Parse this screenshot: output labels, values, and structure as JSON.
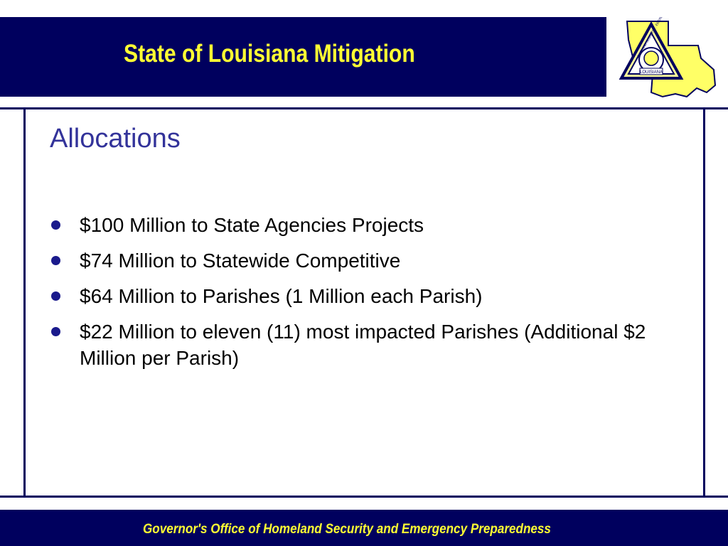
{
  "header": {
    "title": "State of Louisiana Mitigation"
  },
  "logo": {
    "icon": "louisiana-homeland-security-emblem-icon",
    "ring_text": "HOMELAND SECURITY · EMERGENCY PREPAREDNESS",
    "label": "LOUISIANA"
  },
  "slide": {
    "title": "Allocations",
    "bullets": [
      {
        "text": "$100 Million to State Agencies Projects"
      },
      {
        "text": "$74 Million to Statewide Competitive"
      },
      {
        "text": "$64 Million to Parishes (1 Million each Parish)"
      },
      {
        "text": "$22 Million to eleven (11) most impacted Parishes (Additional $2 Million per Parish)"
      }
    ]
  },
  "footer": {
    "text": "Governor's Office of Homeland Security and Emergency Preparedness"
  },
  "colors": {
    "navy": "#00005e",
    "yellow": "#ffff33",
    "title_blue": "#33339a"
  }
}
